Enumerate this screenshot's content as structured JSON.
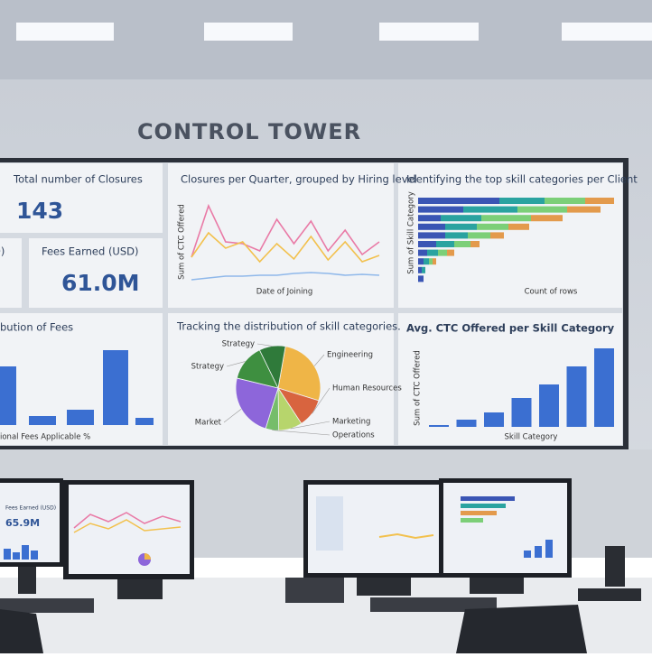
{
  "title": "CONTROL TOWER",
  "closures": {
    "title": "Total number of Closures",
    "value": "143"
  },
  "left_stub": "D)",
  "fees": {
    "title": "Fees Earned (USD)",
    "value": "61.0M"
  },
  "fee_distribution": {
    "title": "bution of Fees",
    "x_label": "ional Fees Applicable %",
    "values": [
      65,
      10,
      17,
      83,
      8
    ],
    "color": "#3b6fd1"
  },
  "quarter_chart": {
    "type": "line",
    "title": "Closures per Quarter, grouped by Hiring level",
    "x_label": "Date of Joining",
    "y_label": "Sum of CTC Offered",
    "series": [
      {
        "color": "#e97aa6",
        "values": [
          27,
          84,
          44,
          42,
          34,
          69,
          42,
          67,
          34,
          57,
          30,
          44
        ]
      },
      {
        "color": "#f2c14e",
        "values": [
          27,
          54,
          37,
          44,
          22,
          42,
          25,
          50,
          24,
          44,
          22,
          29
        ]
      },
      {
        "color": "#8fb8ea",
        "values": [
          2,
          4,
          6,
          6,
          7,
          7,
          9,
          10,
          9,
          7,
          8,
          7
        ]
      }
    ]
  },
  "client_chart": {
    "type": "bar",
    "title": "Identifying the top skill categories per Client",
    "x_label": "Count of rows",
    "y_label": "Sum of Skill Category",
    "series": [
      {
        "color": "#3a55b4",
        "values": [
          90,
          50,
          25,
          30,
          30,
          20,
          10,
          6,
          4,
          6
        ]
      },
      {
        "color": "#2aa3a0",
        "values": [
          50,
          60,
          45,
          35,
          25,
          20,
          12,
          6,
          4,
          0
        ]
      },
      {
        "color": "#7ccf78",
        "values": [
          45,
          55,
          55,
          35,
          25,
          18,
          10,
          4,
          0,
          0
        ]
      },
      {
        "color": "#e39a4c",
        "values": [
          32,
          37,
          35,
          23,
          15,
          10,
          8,
          4,
          0,
          0
        ]
      }
    ]
  },
  "pie_chart": {
    "type": "pie",
    "title": "Tracking the distribution of skill categories.",
    "categories": [
      "Engineering",
      "Human Resources",
      "Marketing",
      "Operations",
      "Market",
      "Strategy",
      "Strategy"
    ],
    "values": [
      27,
      11,
      9,
      5,
      24,
      14,
      10
    ],
    "colors": [
      "#efb547",
      "#d8643f",
      "#b7d56c",
      "#76bd6a",
      "#8d66da",
      "#3e8f40",
      "#2f7a3a"
    ]
  },
  "ctc_chart": {
    "type": "bar",
    "title": "Avg. CTC Offered per Skill Category",
    "x_label": "Skill Category",
    "y_label": "Sum of CTC Offered",
    "values": [
      2,
      8,
      16,
      32,
      47,
      67,
      87
    ],
    "color": "#3b6fd1"
  },
  "monitor": {
    "title": "Fees Earned (USD)",
    "value": "65.9M"
  }
}
